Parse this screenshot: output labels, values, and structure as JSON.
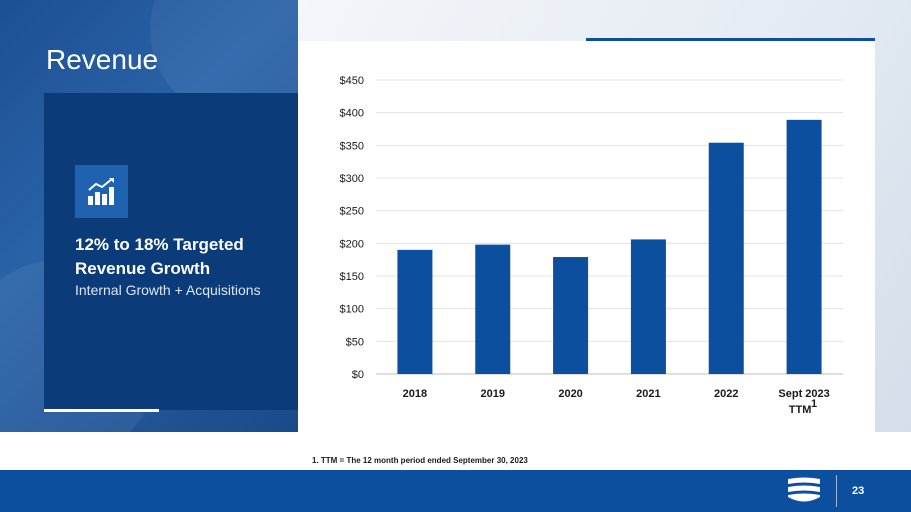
{
  "slide": {
    "title": "Revenue",
    "page_number": "23"
  },
  "panel": {
    "icon": "chart-growth-icon",
    "headline": "12% to 18% Targeted Revenue Growth",
    "subline": "Internal Growth + Acquisitions"
  },
  "footnote": "1. TTM = The 12 month period ended September 30, 2023",
  "colors": {
    "bar": "#0b4f9e",
    "panel": "#0b3b78",
    "footer": "#0b4f9e"
  },
  "chart_data": {
    "type": "bar",
    "title": "",
    "xlabel": "",
    "ylabel": "",
    "categories": [
      "2018",
      "2019",
      "2020",
      "2021",
      "2022",
      "Sept 2023"
    ],
    "category_sublabel": {
      "index": 5,
      "text": "TTM",
      "superscript": "1"
    },
    "values": [
      190,
      198,
      179,
      206,
      354,
      389
    ],
    "ylim": [
      0,
      450
    ],
    "yticks": [
      0,
      50,
      100,
      150,
      200,
      250,
      300,
      350,
      400,
      450
    ],
    "ytick_labels": [
      "$0",
      "$50",
      "$100",
      "$150",
      "$200",
      "$250",
      "$300",
      "$350",
      "$400",
      "$450"
    ],
    "grid": true,
    "legend": "none"
  }
}
